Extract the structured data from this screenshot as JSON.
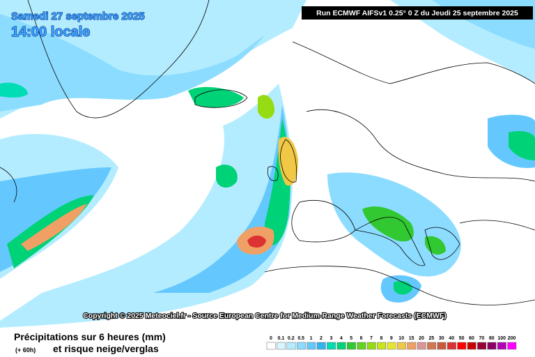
{
  "header": {
    "date": "Samedi 27 septembre 2025",
    "time": "14:00 locale",
    "run": "Run ECMWF AIFSv1 0.25° 0 Z du Jeudi 25 septembre 2025"
  },
  "copyright": "Copyright © 2025 Meteociel.fr - Source European Centre for Medium-Range Weather Forecasts (ECMWF)",
  "legend": {
    "title": "Précipitations sur 6 heures (mm)",
    "lead": "(+ 60h)",
    "subtitle": "et risque neige/verglas",
    "items": [
      {
        "label": "0",
        "color": "#ffffff"
      },
      {
        "label": "0.1",
        "color": "#d8f6ff"
      },
      {
        "label": "0.2",
        "color": "#b4ecff"
      },
      {
        "label": "0.5",
        "color": "#8cdcff"
      },
      {
        "label": "1",
        "color": "#64c8ff"
      },
      {
        "label": "2",
        "color": "#32b4f0"
      },
      {
        "label": "3",
        "color": "#00dcb4"
      },
      {
        "label": "4",
        "color": "#00d278"
      },
      {
        "label": "5",
        "color": "#32c832"
      },
      {
        "label": "6",
        "color": "#64d21e"
      },
      {
        "label": "7",
        "color": "#96dc14"
      },
      {
        "label": "8",
        "color": "#c8e61e"
      },
      {
        "label": "9",
        "color": "#e6e632"
      },
      {
        "label": "10",
        "color": "#f0c846"
      },
      {
        "label": "15",
        "color": "#f0a064"
      },
      {
        "label": "20",
        "color": "#dc9696"
      },
      {
        "label": "25",
        "color": "#d27850"
      },
      {
        "label": "30",
        "color": "#c85a3c"
      },
      {
        "label": "40",
        "color": "#dc3232"
      },
      {
        "label": "50",
        "color": "#ff0000"
      },
      {
        "label": "60",
        "color": "#c80000"
      },
      {
        "label": "70",
        "color": "#960032"
      },
      {
        "label": "80",
        "color": "#8c0064"
      },
      {
        "label": "100",
        "color": "#b400b4"
      },
      {
        "label": "200",
        "color": "#ff00ff"
      }
    ]
  }
}
